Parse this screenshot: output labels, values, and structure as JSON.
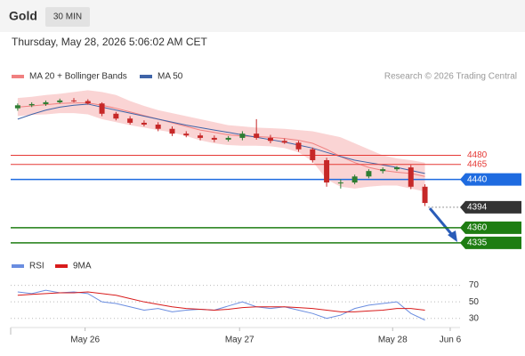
{
  "header": {
    "title": "Gold",
    "interval": "30 MIN",
    "timestamp": "Thursday, May 28, 2026 5:06:02 AM CET",
    "copyright": "Research © 2026 Trading Central"
  },
  "chart_data": [
    {
      "type": "candlestick",
      "legend": [
        {
          "name": "MA 20 + Bollinger Bands",
          "color": "#f08080"
        },
        {
          "name": "MA 50",
          "color": "#3f64a8"
        }
      ],
      "xlim": [
        0,
        32
      ],
      "ylim": [
        4320,
        4590
      ],
      "up_color": "#2e7d32",
      "down_color": "#c62828",
      "band_color": "#f9c9c9",
      "open": [
        4558,
        4563,
        4565,
        4568,
        4571,
        4570,
        4566,
        4549,
        4541,
        4534,
        4531,
        4524,
        4516,
        4513,
        4509,
        4506,
        4509,
        4516,
        4509,
        4504,
        4501,
        4490,
        4472,
        4435,
        4435,
        4445,
        4454,
        4457,
        4460,
        4428
      ],
      "high": [
        4566,
        4568,
        4571,
        4574,
        4575,
        4573,
        4568,
        4552,
        4545,
        4538,
        4535,
        4528,
        4520,
        4517,
        4513,
        4512,
        4520,
        4540,
        4514,
        4508,
        4504,
        4493,
        4476,
        4440,
        4448,
        4457,
        4460,
        4462,
        4464,
        4432
      ],
      "low": [
        4554,
        4560,
        4562,
        4566,
        4568,
        4564,
        4545,
        4538,
        4531,
        4528,
        4520,
        4512,
        4510,
        4505,
        4502,
        4503,
        4505,
        4506,
        4500,
        4499,
        4486,
        4468,
        4428,
        4425,
        4432,
        4442,
        4450,
        4454,
        4424,
        4396
      ],
      "close": [
        4563,
        4565,
        4568,
        4571,
        4570,
        4566,
        4549,
        4541,
        4534,
        4531,
        4524,
        4516,
        4513,
        4509,
        4506,
        4509,
        4516,
        4509,
        4504,
        4501,
        4490,
        4472,
        4435,
        4435,
        4445,
        4454,
        4457,
        4460,
        4428,
        4401
      ],
      "ma20": [
        4560,
        4562,
        4564,
        4566,
        4567,
        4567,
        4563,
        4558,
        4552,
        4546,
        4540,
        4534,
        4528,
        4522,
        4518,
        4514,
        4512,
        4511,
        4510,
        4508,
        4505,
        4500,
        4490,
        4478,
        4468,
        4460,
        4455,
        4452,
        4450,
        4445
      ],
      "ma50": [
        4540,
        4548,
        4555,
        4560,
        4563,
        4565,
        4560,
        4555,
        4550,
        4545,
        4540,
        4535,
        4530,
        4526,
        4522,
        4518,
        4514,
        4510,
        4506,
        4502,
        4497,
        4492,
        4485,
        4478,
        4472,
        4468,
        4464,
        4460,
        4455,
        4450
      ],
      "bb_upper": [
        4575,
        4577,
        4580,
        4582,
        4585,
        4588,
        4585,
        4580,
        4570,
        4562,
        4555,
        4550,
        4545,
        4540,
        4535,
        4530,
        4528,
        4526,
        4525,
        4524,
        4522,
        4520,
        4515,
        4510,
        4500,
        4490,
        4480,
        4475,
        4472,
        4468
      ],
      "bb_lower": [
        4545,
        4547,
        4548,
        4550,
        4550,
        4548,
        4540,
        4535,
        4530,
        4526,
        4522,
        4518,
        4512,
        4505,
        4500,
        4497,
        4496,
        4496,
        4495,
        4492,
        4485,
        4470,
        4440,
        4428,
        4425,
        4428,
        4430,
        4430,
        4425,
        4420
      ],
      "levels": [
        {
          "value": 4480,
          "color": "#e53935",
          "boxed": false
        },
        {
          "value": 4465,
          "color": "#e53935",
          "boxed": false
        },
        {
          "value": 4440,
          "color": "#1e6be0",
          "boxed": true
        },
        {
          "value": 4394,
          "color": "#333333",
          "boxed": true,
          "dotted": true
        },
        {
          "value": 4360,
          "color": "#1e7d12",
          "boxed": true
        },
        {
          "value": 4335,
          "color": "#1e7d12",
          "boxed": true
        }
      ]
    },
    {
      "type": "line",
      "xlim": [
        0,
        32
      ],
      "ylim": [
        19,
        76
      ],
      "yticks": [
        70,
        50,
        30
      ],
      "xticks": [
        {
          "value": 5.3,
          "label": "May 26"
        },
        {
          "value": 16.3,
          "label": "May 27"
        },
        {
          "value": 27.2,
          "label": "May 28"
        },
        {
          "value": 31.3,
          "label": "Jun 6"
        }
      ],
      "series": [
        {
          "name": "RSI",
          "color": "#6a8de0",
          "values": [
            62,
            60,
            64,
            61,
            62,
            60,
            50,
            48,
            44,
            40,
            42,
            38,
            40,
            41,
            40,
            45,
            50,
            44,
            42,
            44,
            40,
            36,
            30,
            34,
            42,
            46,
            48,
            50,
            36,
            28
          ]
        },
        {
          "name": "9MA",
          "color": "#d81b1b",
          "values": [
            58,
            59,
            60,
            61,
            61,
            62,
            60,
            58,
            54,
            50,
            47,
            44,
            42,
            41,
            40,
            41,
            43,
            44,
            44,
            44,
            43,
            42,
            40,
            38,
            38,
            39,
            40,
            42,
            42,
            40
          ]
        }
      ]
    }
  ]
}
